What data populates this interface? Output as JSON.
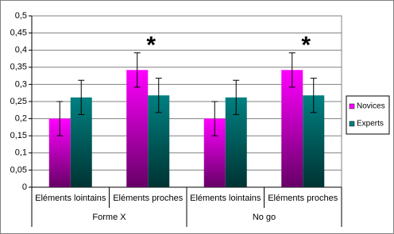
{
  "chart_data": {
    "type": "bar",
    "categories": [
      "Eléments lointains",
      "Eléments proches",
      "Eléments lointains",
      "Eléments proches"
    ],
    "groups": [
      "Forme X",
      "No go"
    ],
    "annotations": [
      null,
      "*",
      null,
      "*"
    ],
    "series": [
      {
        "name": "Novices",
        "color": "#ff00ff",
        "values": [
          0.2,
          0.342,
          0.2,
          0.342
        ],
        "errors": [
          0.05,
          0.05,
          0.05,
          0.05
        ]
      },
      {
        "name": "Experts",
        "color": "#008080",
        "values": [
          0.262,
          0.268,
          0.262,
          0.268
        ],
        "errors": [
          0.05,
          0.05,
          0.05,
          0.05
        ]
      }
    ],
    "ylim": [
      0,
      0.5
    ],
    "yticks": [
      0,
      {
        "value": 0.05,
        "label": "0,05"
      },
      {
        "value": 0.1,
        "label": "0,1"
      },
      {
        "value": 0.15,
        "label": "0,15"
      },
      {
        "value": 0.2,
        "label": "0,2"
      },
      {
        "value": 0.25,
        "label": "0,25"
      },
      {
        "value": 0.3,
        "label": "0,3"
      },
      {
        "value": 0.35,
        "label": "0,35"
      },
      {
        "value": 0.4,
        "label": "0,4"
      },
      {
        "value": 0.45,
        "label": "0,45"
      },
      {
        "value": 0.5,
        "label": "0,5"
      }
    ],
    "grid": true,
    "legend": "right"
  }
}
